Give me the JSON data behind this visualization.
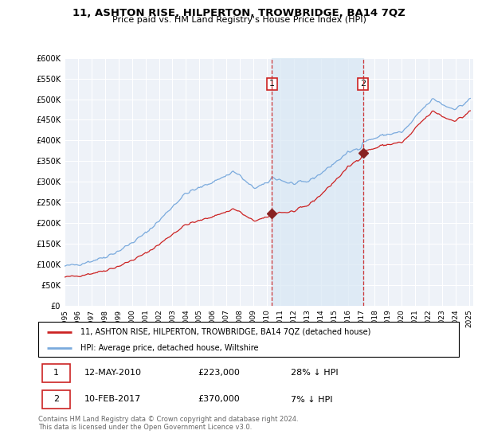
{
  "title": "11, ASHTON RISE, HILPERTON, TROWBRIDGE, BA14 7QZ",
  "subtitle": "Price paid vs. HM Land Registry's House Price Index (HPI)",
  "legend_line1": "11, ASHTON RISE, HILPERTON, TROWBRIDGE, BA14 7QZ (detached house)",
  "legend_line2": "HPI: Average price, detached house, Wiltshire",
  "footer": "Contains HM Land Registry data © Crown copyright and database right 2024.\nThis data is licensed under the Open Government Licence v3.0.",
  "annotation1": {
    "label": "1",
    "date": "12-MAY-2010",
    "price": "£223,000",
    "hpi": "28% ↓ HPI"
  },
  "annotation2": {
    "label": "2",
    "date": "10-FEB-2017",
    "price": "£370,000",
    "hpi": "7% ↓ HPI"
  },
  "hpi_color": "#7aaadd",
  "hpi_fill_color": "#d8e8f5",
  "price_color": "#cc2222",
  "marker_color": "#882222",
  "ylim": [
    0,
    600000
  ],
  "xlim": [
    1995.0,
    2025.3
  ],
  "yticks": [
    0,
    50000,
    100000,
    150000,
    200000,
    250000,
    300000,
    350000,
    400000,
    450000,
    500000,
    550000,
    600000
  ],
  "ytick_labels": [
    "£0",
    "£50K",
    "£100K",
    "£150K",
    "£200K",
    "£250K",
    "£300K",
    "£350K",
    "£400K",
    "£450K",
    "£500K",
    "£550K",
    "£600K"
  ],
  "xticks": [
    1995,
    1996,
    1997,
    1998,
    1999,
    2000,
    2001,
    2002,
    2003,
    2004,
    2005,
    2006,
    2007,
    2008,
    2009,
    2010,
    2011,
    2012,
    2013,
    2014,
    2015,
    2016,
    2017,
    2018,
    2019,
    2020,
    2021,
    2022,
    2023,
    2024,
    2025
  ],
  "vline1_x": 2010.37,
  "vline2_x": 2017.12,
  "dot1_x": 2010.37,
  "dot1_y": 223000,
  "dot2_x": 2017.12,
  "dot2_y": 370000,
  "background_color": "#eef2f8",
  "grid_color": "#ffffff",
  "sale1_year": 2010.37,
  "sale2_year": 2017.12,
  "sale1_price": 223000,
  "sale2_price": 370000
}
